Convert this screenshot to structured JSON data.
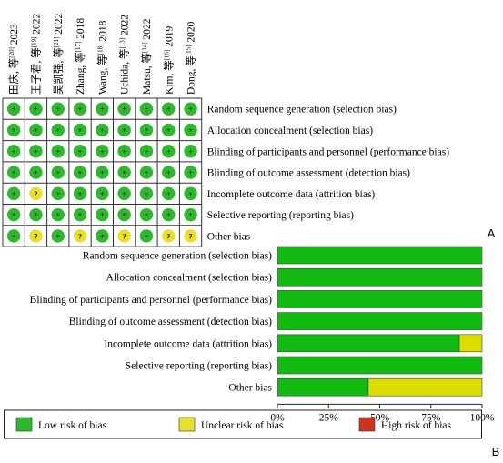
{
  "chart_data": [
    {
      "type": "table",
      "panel_label": "A",
      "studies": [
        {
          "name": "田庆, 等",
          "ref": "[20]",
          "year": "2023"
        },
        {
          "name": "王子君, 等",
          "ref": "[19]",
          "year": "2022"
        },
        {
          "name": "吴凯强, 等",
          "ref": "[21]",
          "year": "2022"
        },
        {
          "name": "Zhang, 等",
          "ref": "[17]",
          "year": "2018"
        },
        {
          "name": "Wang, 等",
          "ref": "[18]",
          "year": "2018"
        },
        {
          "name": "Uchida, 等",
          "ref": "[13]",
          "year": "2022"
        },
        {
          "name": "Matsu, 等",
          "ref": "[14]",
          "year": "2022"
        },
        {
          "name": "Kim, 等",
          "ref": "[16]",
          "year": "2019"
        },
        {
          "name": "Dong, 等",
          "ref": "[15]",
          "year": "2020"
        }
      ],
      "domains": [
        "Random sequence generation (selection bias)",
        "Allocation concealment (selection bias)",
        "Blinding of participants and personnel (performance bias)",
        "Blinding of outcome assessment (detection bias)",
        "Incomplete outcome data (attrition bias)",
        "Selective reporting (reporting bias)",
        "Other bias"
      ],
      "judgements": [
        [
          "low",
          "low",
          "low",
          "low",
          "low",
          "low",
          "low",
          "low",
          "low"
        ],
        [
          "low",
          "low",
          "low",
          "low",
          "low",
          "low",
          "low",
          "low",
          "low"
        ],
        [
          "low",
          "low",
          "low",
          "low",
          "low",
          "low",
          "low",
          "low",
          "low"
        ],
        [
          "low",
          "low",
          "low",
          "low",
          "low",
          "low",
          "low",
          "low",
          "low"
        ],
        [
          "low",
          "unclear",
          "low",
          "low",
          "low",
          "low",
          "low",
          "low",
          "low"
        ],
        [
          "low",
          "low",
          "low",
          "low",
          "low",
          "low",
          "low",
          "low",
          "low"
        ],
        [
          "low",
          "unclear",
          "low",
          "unclear",
          "low",
          "unclear",
          "low",
          "unclear",
          "unclear"
        ]
      ],
      "symbols": {
        "low": "+",
        "unclear": "?",
        "high": "−"
      }
    },
    {
      "type": "bar",
      "orientation": "horizontal",
      "stacked": true,
      "panel_label": "B",
      "categories": [
        "Random sequence generation (selection bias)",
        "Allocation concealment (selection bias)",
        "Blinding of participants and personnel (performance bias)",
        "Blinding of outcome assessment (detection bias)",
        "Incomplete outcome data (attrition bias)",
        "Selective reporting (reporting bias)",
        "Other bias"
      ],
      "series": [
        {
          "name": "Low risk of bias",
          "key": "low",
          "values": [
            100,
            100,
            100,
            100,
            88.9,
            100,
            44.4
          ]
        },
        {
          "name": "Unclear risk of bias",
          "key": "unclear",
          "values": [
            0,
            0,
            0,
            0,
            11.1,
            0,
            55.6
          ]
        },
        {
          "name": "High risk of bias",
          "key": "high",
          "values": [
            0,
            0,
            0,
            0,
            0,
            0,
            0
          ]
        }
      ],
      "xlim": [
        0,
        100
      ],
      "xticks": [
        "0%",
        "25%",
        "50%",
        "75%",
        "100%"
      ],
      "legend_position": "bottom"
    }
  ],
  "colors": {
    "low": "#2db82d",
    "low_bar": "#11bb11",
    "unclear": "#e8e02a",
    "unclear_bar": "#dddd00",
    "high": "#cc3322",
    "grid_line": "#555555"
  }
}
